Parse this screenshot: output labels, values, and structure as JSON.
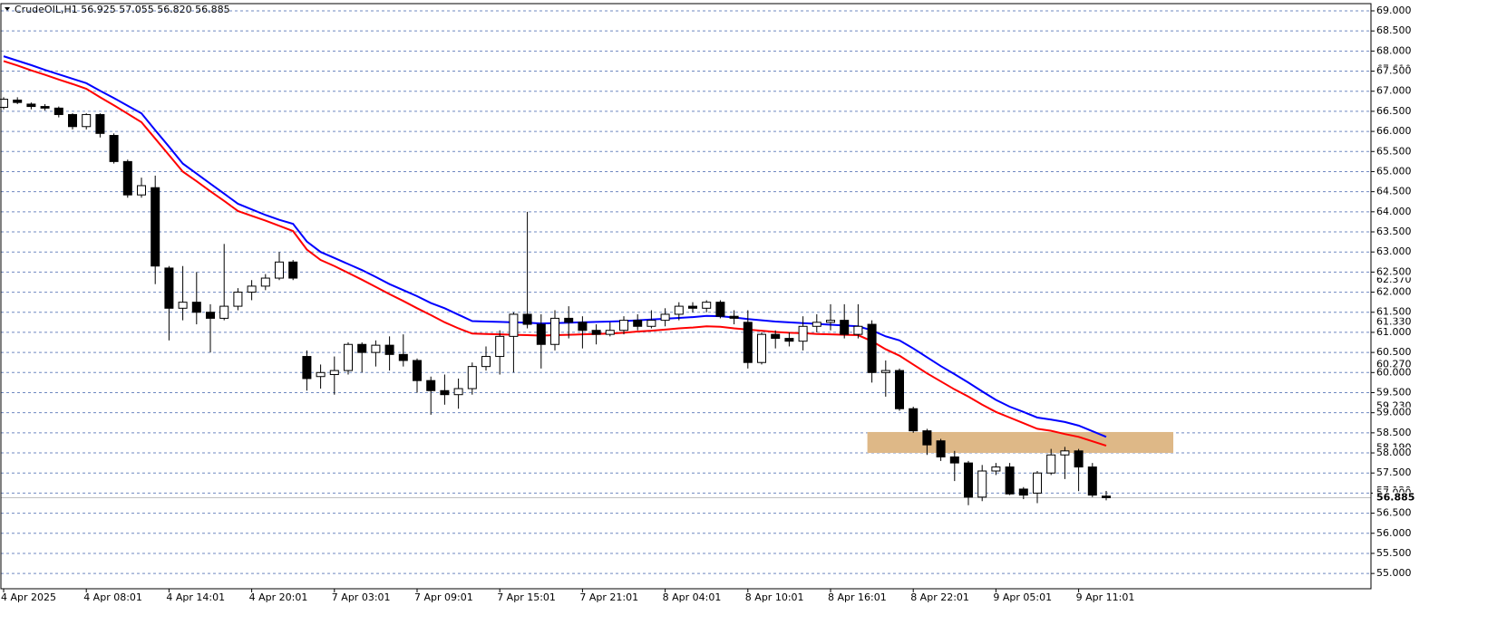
{
  "chart_data": {
    "type": "candlestick",
    "title": "CrudeOIL,H1  56.925 57.055 56.820 56.885",
    "categories": [
      "4 Apr 2025",
      null,
      null,
      null,
      null,
      null,
      "4 Apr 08:01",
      null,
      null,
      null,
      null,
      null,
      "4 Apr 14:01",
      null,
      null,
      null,
      null,
      null,
      "4 Apr 20:01",
      null,
      null,
      null,
      null,
      null,
      "7 Apr 03:01",
      null,
      null,
      null,
      null,
      null,
      "7 Apr 09:01",
      null,
      null,
      null,
      null,
      null,
      "7 Apr 15:01",
      null,
      null,
      null,
      null,
      null,
      "7 Apr 21:01",
      null,
      null,
      null,
      null,
      null,
      "8 Apr 04:01",
      null,
      null,
      null,
      null,
      null,
      "8 Apr 10:01",
      null,
      null,
      null,
      null,
      null,
      "8 Apr 16:01",
      null,
      null,
      null,
      null,
      null,
      "8 Apr 22:01",
      null,
      null,
      null,
      null,
      null,
      "9 Apr 05:01",
      null,
      null,
      null,
      null,
      null,
      "9 Apr 11:01",
      null,
      null
    ],
    "open": [
      66.6,
      66.78,
      66.68,
      66.62,
      66.58,
      66.42,
      66.12,
      66.42,
      65.9,
      65.25,
      64.42,
      64.6,
      62.6,
      61.6,
      61.75,
      61.5,
      61.35,
      61.65,
      62.0,
      62.15,
      62.35,
      62.75,
      60.4,
      59.9,
      59.95,
      60.05,
      60.7,
      60.5,
      60.68,
      60.45,
      60.3,
      59.8,
      59.55,
      59.45,
      59.6,
      60.15,
      60.4,
      60.9,
      61.45,
      61.2,
      60.7,
      61.35,
      61.25,
      61.05,
      60.95,
      61.05,
      61.3,
      61.15,
      61.3,
      61.45,
      61.65,
      61.6,
      61.75,
      61.4,
      61.25,
      60.25,
      60.95,
      60.85,
      60.78,
      61.15,
      61.25,
      61.3,
      60.95,
      61.2,
      60.0,
      60.05,
      59.1,
      58.55,
      58.3,
      57.9,
      57.75,
      56.9,
      57.55,
      57.65,
      57.1,
      57.0,
      57.5,
      57.95,
      58.05,
      57.65,
      56.925
    ],
    "high": [
      66.85,
      66.85,
      66.72,
      66.68,
      66.62,
      66.45,
      66.45,
      66.45,
      65.95,
      65.3,
      64.85,
      64.9,
      62.65,
      62.65,
      62.5,
      61.7,
      63.2,
      62.1,
      62.3,
      62.45,
      63.0,
      62.8,
      60.55,
      60.2,
      60.4,
      60.75,
      60.75,
      60.8,
      60.9,
      60.95,
      60.35,
      59.9,
      59.95,
      59.85,
      60.25,
      60.65,
      61.05,
      61.5,
      64.0,
      61.45,
      61.55,
      61.65,
      61.4,
      61.2,
      61.25,
      61.4,
      61.45,
      61.55,
      61.6,
      61.75,
      61.75,
      61.8,
      61.8,
      61.55,
      61.55,
      61.0,
      61.05,
      61.0,
      61.4,
      61.45,
      61.7,
      61.7,
      61.7,
      61.3,
      60.3,
      60.1,
      59.15,
      58.6,
      58.35,
      58.05,
      57.8,
      57.7,
      57.75,
      57.75,
      57.15,
      57.55,
      58.1,
      58.15,
      58.1,
      57.75,
      57.055
    ],
    "low": [
      66.55,
      66.68,
      66.55,
      66.52,
      66.35,
      66.05,
      66.05,
      65.85,
      65.2,
      64.35,
      64.35,
      62.2,
      60.8,
      61.3,
      61.2,
      60.5,
      61.3,
      61.55,
      61.8,
      62.05,
      62.3,
      62.3,
      59.55,
      59.6,
      59.45,
      59.95,
      60.0,
      60.15,
      60.05,
      60.15,
      59.5,
      58.95,
      59.2,
      59.1,
      59.45,
      60.05,
      59.95,
      60.0,
      61.1,
      60.1,
      60.55,
      60.85,
      60.6,
      60.7,
      60.9,
      60.95,
      61.05,
      61.1,
      61.15,
      61.3,
      61.5,
      61.5,
      61.35,
      61.2,
      60.1,
      60.2,
      60.6,
      60.65,
      60.55,
      61.0,
      61.05,
      60.85,
      60.85,
      59.75,
      59.4,
      59.05,
      58.5,
      57.95,
      57.8,
      57.3,
      56.7,
      56.8,
      57.45,
      56.95,
      56.85,
      56.75,
      57.45,
      57.35,
      57.05,
      56.9,
      56.82
    ],
    "close": [
      66.8,
      66.72,
      66.62,
      66.58,
      66.42,
      66.12,
      66.42,
      65.95,
      65.25,
      64.42,
      64.65,
      62.65,
      61.6,
      61.75,
      61.5,
      61.35,
      61.65,
      62.0,
      62.15,
      62.35,
      62.75,
      62.35,
      59.85,
      60.0,
      60.05,
      60.7,
      60.5,
      60.68,
      60.45,
      60.3,
      59.8,
      59.55,
      59.45,
      59.6,
      60.15,
      60.4,
      60.9,
      61.45,
      61.2,
      60.7,
      61.35,
      61.25,
      61.05,
      60.95,
      61.05,
      61.3,
      61.15,
      61.3,
      61.45,
      61.65,
      61.6,
      61.75,
      61.4,
      61.35,
      60.25,
      60.95,
      60.85,
      60.78,
      61.15,
      61.25,
      61.3,
      60.95,
      61.15,
      60.0,
      60.05,
      59.1,
      58.55,
      58.2,
      57.9,
      57.75,
      56.9,
      57.55,
      57.65,
      56.98,
      56.95,
      57.5,
      57.95,
      58.05,
      57.65,
      56.95,
      56.885
    ],
    "up_color": "#ffffff",
    "down_color": "#000000",
    "lines": [
      {
        "color": "#0000ff",
        "values": [
          67.87,
          67.76,
          67.65,
          67.53,
          67.42,
          67.31,
          67.2,
          67.01,
          66.83,
          66.64,
          66.45,
          66.03,
          65.62,
          65.2,
          64.95,
          64.7,
          64.45,
          64.2,
          64.06,
          63.92,
          63.8,
          63.7,
          63.26,
          63.0,
          62.85,
          62.7,
          62.55,
          62.38,
          62.2,
          62.05,
          61.9,
          61.73,
          61.6,
          61.44,
          61.28,
          61.27,
          61.26,
          61.25,
          61.24,
          61.22,
          61.23,
          61.24,
          61.25,
          61.26,
          61.27,
          61.28,
          61.3,
          61.32,
          61.34,
          61.36,
          61.38,
          61.41,
          61.4,
          61.37,
          61.33,
          61.3,
          61.27,
          61.25,
          61.23,
          61.21,
          61.19,
          61.17,
          61.15,
          61.05,
          60.9,
          60.8,
          60.6,
          60.38,
          60.16,
          59.96,
          59.75,
          59.53,
          59.32,
          59.15,
          59.02,
          58.88,
          58.83,
          58.77,
          58.68,
          58.54,
          58.4
        ]
      },
      {
        "color": "#ff0000",
        "values": [
          67.75,
          67.64,
          67.52,
          67.41,
          67.29,
          67.18,
          67.06,
          66.85,
          66.65,
          66.44,
          66.23,
          65.82,
          65.41,
          65.0,
          64.76,
          64.51,
          64.27,
          64.02,
          63.9,
          63.78,
          63.65,
          63.52,
          63.06,
          62.8,
          62.65,
          62.48,
          62.31,
          62.13,
          61.95,
          61.78,
          61.6,
          61.43,
          61.25,
          61.1,
          60.97,
          60.96,
          60.95,
          60.94,
          60.93,
          60.92,
          60.93,
          60.94,
          60.95,
          60.96,
          60.97,
          60.99,
          61.02,
          61.04,
          61.07,
          61.1,
          61.12,
          61.15,
          61.14,
          61.1,
          61.07,
          61.04,
          61.01,
          60.99,
          60.98,
          60.96,
          60.95,
          60.94,
          60.93,
          60.78,
          60.58,
          60.42,
          60.2,
          59.98,
          59.78,
          59.58,
          59.4,
          59.2,
          59.02,
          58.88,
          58.74,
          58.6,
          58.55,
          58.47,
          58.4,
          58.29,
          58.18
        ]
      }
    ],
    "zone": {
      "low": 58.0,
      "high": 58.52,
      "color": "#deb887"
    },
    "last_price": {
      "value": 56.885,
      "label": "56.885"
    },
    "ylim": [
      54.62,
      69.18
    ],
    "yticks": [
      {
        "value": 69,
        "label": "69.000"
      },
      {
        "value": 68.5,
        "label": "68.500"
      },
      {
        "value": 68,
        "label": "68.000"
      },
      {
        "value": 67.5,
        "label": "67.500"
      },
      {
        "value": 67,
        "label": "67.000"
      },
      {
        "value": 66.5,
        "label": "66.500"
      },
      {
        "value": 66,
        "label": "66.000"
      },
      {
        "value": 65.5,
        "label": "65.500"
      },
      {
        "value": 65,
        "label": "65.000"
      },
      {
        "value": 64.5,
        "label": "64.500"
      },
      {
        "value": 64,
        "label": "64.000"
      },
      {
        "value": 63.5,
        "label": "63.500"
      },
      {
        "value": 63,
        "label": "63.000"
      },
      {
        "value": 62.5,
        "label": "62.500"
      },
      {
        "value": 62,
        "label": "62.000"
      },
      {
        "value": 61.5,
        "label": "61.500"
      },
      {
        "value": 61,
        "label": "61.000"
      },
      {
        "value": 60.5,
        "label": "60.500"
      },
      {
        "value": 60,
        "label": "60.000"
      },
      {
        "value": 59.5,
        "label": "59.500"
      },
      {
        "value": 59,
        "label": "59.000"
      },
      {
        "value": 58.5,
        "label": "58.500"
      },
      {
        "value": 58,
        "label": "58.000"
      },
      {
        "value": 57.5,
        "label": "57.500"
      },
      {
        "value": 57,
        "label": "57.000"
      },
      {
        "value": 56.5,
        "label": "56.500"
      },
      {
        "value": 56,
        "label": "56.000"
      },
      {
        "value": 55.5,
        "label": "55.500"
      },
      {
        "value": 55,
        "label": "55.000"
      }
    ],
    "level_labels": [
      {
        "value": 67.61,
        "label": "67.610"
      },
      {
        "value": 62.37,
        "label": "62.370"
      },
      {
        "value": 61.33,
        "label": "61.330"
      },
      {
        "value": 60.27,
        "label": "60.270"
      },
      {
        "value": 59.23,
        "label": "59.230"
      },
      {
        "value": 58.19,
        "label": "58.190"
      },
      {
        "value": 57.12,
        "label": "57.120"
      }
    ],
    "grid": true
  }
}
